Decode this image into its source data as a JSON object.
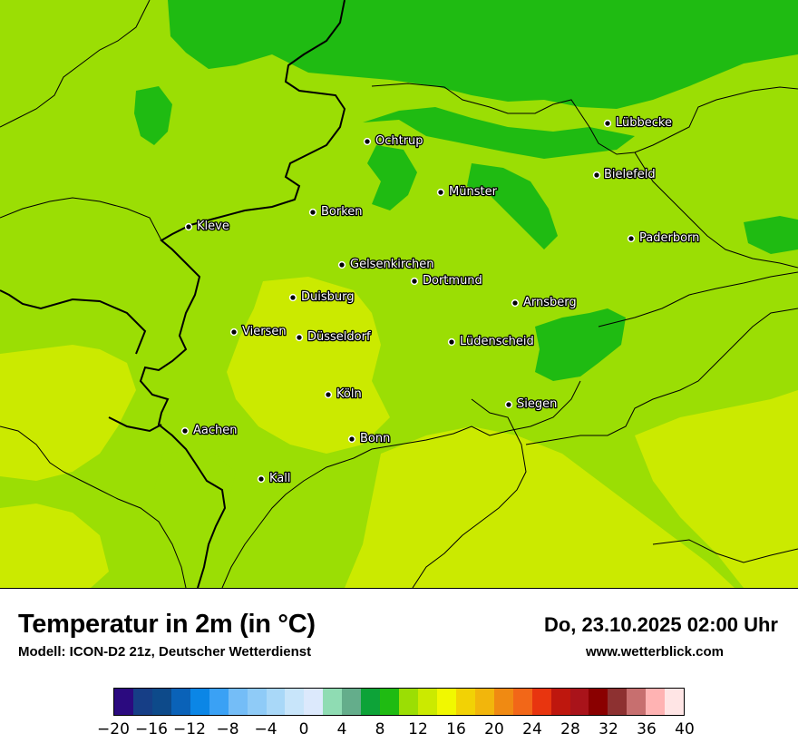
{
  "header": {
    "title": "Temperatur in 2m (in °C)",
    "model": "Modell: ICON-D2 21z, Deutscher Wetterdienst",
    "datetime": "Do, 23.10.2025 02:00 Uhr",
    "site": "www.wetterblick.com"
  },
  "cities": [
    {
      "name": "Lübbecke"
    },
    {
      "name": "Ochtrup"
    },
    {
      "name": "Bielefeld"
    },
    {
      "name": "Münster"
    },
    {
      "name": "Borken"
    },
    {
      "name": "Kleve"
    },
    {
      "name": "Paderborn"
    },
    {
      "name": "Gelsenkirchen"
    },
    {
      "name": "Dortmund"
    },
    {
      "name": "Duisburg"
    },
    {
      "name": "Arnsberg"
    },
    {
      "name": "Viersen"
    },
    {
      "name": "Düsseldorf"
    },
    {
      "name": "Lüdenscheid"
    },
    {
      "name": "Köln"
    },
    {
      "name": "Siegen"
    },
    {
      "name": "Aachen"
    },
    {
      "name": "Bonn"
    },
    {
      "name": "Kall"
    }
  ],
  "legend": {
    "colors": [
      "#2b0a7f",
      "#163e86",
      "#0d4a8a",
      "#0a62b8",
      "#0b86e6",
      "#3aa1f5",
      "#74bdf7",
      "#8fcbf7",
      "#a9d8f8",
      "#c8e5fa",
      "#dce9fc",
      "#8fdcb3",
      "#64ad8b",
      "#0da338",
      "#1fbb12",
      "#9bde04",
      "#cbea00",
      "#f1f800",
      "#f2d205",
      "#f2b60c",
      "#f08a12",
      "#f26718",
      "#e8350f",
      "#be170e",
      "#a9131a",
      "#8a0000",
      "#8d3131",
      "#c76f6f",
      "#ffb3b3",
      "#ffe5e5"
    ],
    "ticks": [
      "−20",
      "−16",
      "−12",
      "−8",
      "−4",
      "0",
      "4",
      "8",
      "12",
      "16",
      "20",
      "24",
      "28",
      "32",
      "36",
      "40"
    ]
  },
  "field_colors": {
    "dark_green": "#1fbb12",
    "mid_green": "#9bde04",
    "yellow_green": "#cbea00"
  }
}
